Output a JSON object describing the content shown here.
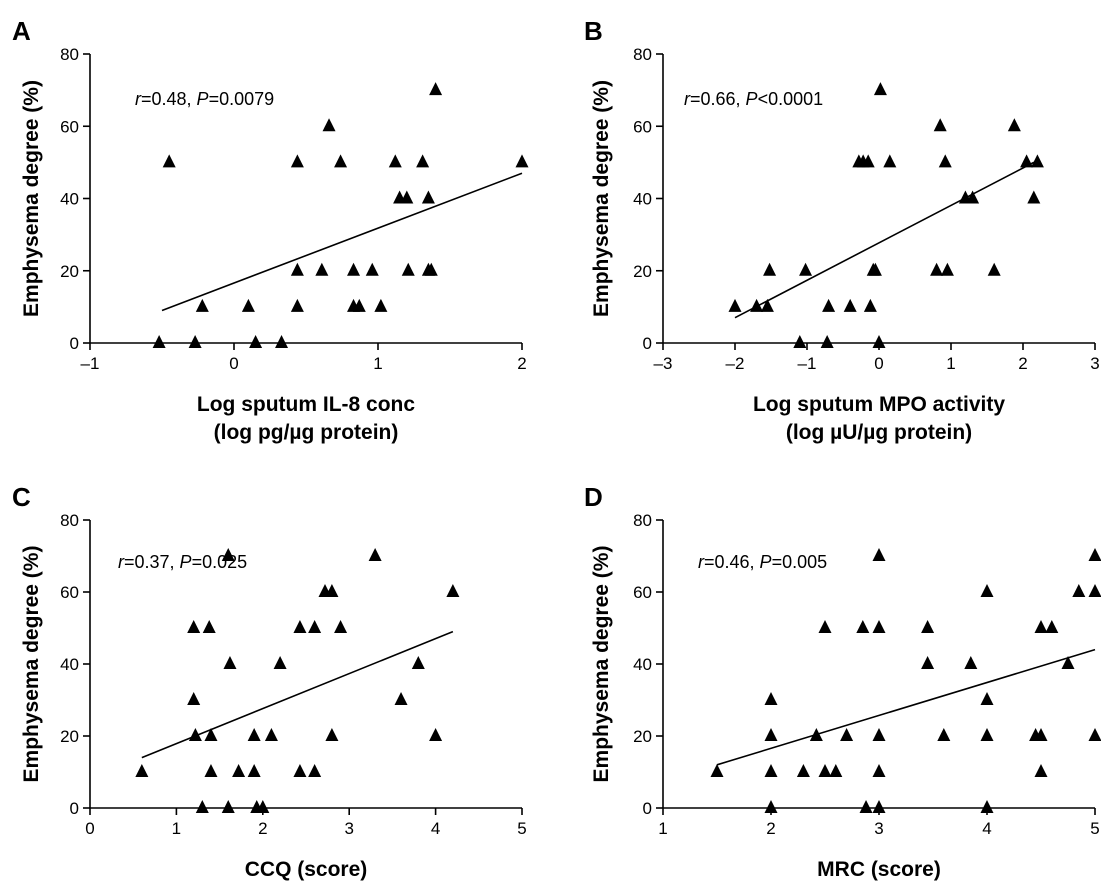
{
  "chart_data": [
    {
      "type": "scatter",
      "panel": "A",
      "annotation": {
        "r_symbol": "r",
        "r_text": "=0.48, ",
        "p_symbol": "P",
        "p_text": "=0.0079"
      },
      "xlabel": [
        "Log sputum IL-8 conc",
        "(log pg/µg protein)"
      ],
      "ylabel": "Emphysema degree (%)",
      "xlim": [
        -1,
        2
      ],
      "ylim": [
        0,
        80
      ],
      "xticks": [
        -1,
        0,
        1,
        2
      ],
      "xtick_labels": [
        "–1",
        "0",
        "1",
        "2"
      ],
      "yticks": [
        0,
        20,
        40,
        60,
        80
      ],
      "ytick_labels": [
        "0",
        "20",
        "40",
        "60",
        "80"
      ],
      "points": [
        [
          -0.45,
          50
        ],
        [
          -0.52,
          0
        ],
        [
          -0.27,
          0
        ],
        [
          -0.22,
          10
        ],
        [
          0.1,
          10
        ],
        [
          0.15,
          0
        ],
        [
          0.33,
          0
        ],
        [
          0.44,
          50
        ],
        [
          0.44,
          20
        ],
        [
          0.44,
          10
        ],
        [
          0.61,
          20
        ],
        [
          0.66,
          60
        ],
        [
          0.74,
          50
        ],
        [
          0.83,
          20
        ],
        [
          0.83,
          10
        ],
        [
          0.87,
          10
        ],
        [
          0.96,
          20
        ],
        [
          1.02,
          10
        ],
        [
          1.12,
          50
        ],
        [
          1.15,
          40
        ],
        [
          1.2,
          40
        ],
        [
          1.21,
          20
        ],
        [
          1.31,
          50
        ],
        [
          1.35,
          40
        ],
        [
          1.35,
          20
        ],
        [
          1.37,
          20
        ],
        [
          1.4,
          70
        ],
        [
          2.0,
          50
        ]
      ],
      "regression": [
        [
          -0.5,
          9
        ],
        [
          2.0,
          47
        ]
      ]
    },
    {
      "type": "scatter",
      "panel": "B",
      "annotation": {
        "r_symbol": "r",
        "r_text": "=0.66, ",
        "p_symbol": "P",
        "p_text": "<0.0001"
      },
      "xlabel": [
        "Log sputum MPO activity",
        "(log µU/µg protein)"
      ],
      "ylabel": "Emphysema degree (%)",
      "xlim": [
        -3,
        3
      ],
      "ylim": [
        0,
        80
      ],
      "xticks": [
        -3,
        -2,
        -1,
        0,
        1,
        2,
        3
      ],
      "xtick_labels": [
        "–3",
        "–2",
        "–1",
        "0",
        "1",
        "2",
        "3"
      ],
      "yticks": [
        0,
        20,
        40,
        60,
        80
      ],
      "ytick_labels": [
        "0",
        "20",
        "40",
        "60",
        "80"
      ],
      "points": [
        [
          -2.0,
          10
        ],
        [
          -1.7,
          10
        ],
        [
          -1.55,
          10
        ],
        [
          -1.52,
          20
        ],
        [
          -1.1,
          0
        ],
        [
          -1.02,
          20
        ],
        [
          -0.72,
          0
        ],
        [
          -0.7,
          10
        ],
        [
          -0.4,
          10
        ],
        [
          -0.28,
          50
        ],
        [
          -0.22,
          50
        ],
        [
          -0.15,
          50
        ],
        [
          -0.12,
          10
        ],
        [
          -0.08,
          20
        ],
        [
          -0.05,
          20
        ],
        [
          0.0,
          0
        ],
        [
          0.02,
          70
        ],
        [
          0.15,
          50
        ],
        [
          0.8,
          20
        ],
        [
          0.85,
          60
        ],
        [
          0.92,
          50
        ],
        [
          0.95,
          20
        ],
        [
          1.2,
          40
        ],
        [
          1.3,
          40
        ],
        [
          1.6,
          20
        ],
        [
          1.88,
          60
        ],
        [
          2.05,
          50
        ],
        [
          2.2,
          50
        ],
        [
          2.15,
          40
        ]
      ],
      "regression": [
        [
          -2.0,
          7
        ],
        [
          2.15,
          50
        ]
      ]
    },
    {
      "type": "scatter",
      "panel": "C",
      "annotation": {
        "r_symbol": "r",
        "r_text": "=0.37, ",
        "p_symbol": "P",
        "p_text": "=0.025"
      },
      "xlabel": [
        "CCQ (score)"
      ],
      "ylabel": "Emphysema degree (%)",
      "xlim": [
        0,
        5
      ],
      "ylim": [
        0,
        80
      ],
      "xticks": [
        0,
        1,
        2,
        3,
        4,
        5
      ],
      "xtick_labels": [
        "0",
        "1",
        "2",
        "3",
        "4",
        "5"
      ],
      "yticks": [
        0,
        20,
        40,
        60,
        80
      ],
      "ytick_labels": [
        "0",
        "20",
        "40",
        "60",
        "80"
      ],
      "points": [
        [
          0.6,
          10
        ],
        [
          1.2,
          50
        ],
        [
          1.2,
          30
        ],
        [
          1.22,
          20
        ],
        [
          1.3,
          0
        ],
        [
          1.38,
          50
        ],
        [
          1.4,
          20
        ],
        [
          1.4,
          10
        ],
        [
          1.6,
          70
        ],
        [
          1.62,
          40
        ],
        [
          1.6,
          0
        ],
        [
          1.72,
          10
        ],
        [
          1.9,
          20
        ],
        [
          1.9,
          10
        ],
        [
          1.93,
          0
        ],
        [
          2.0,
          0
        ],
        [
          2.1,
          20
        ],
        [
          2.2,
          40
        ],
        [
          2.43,
          50
        ],
        [
          2.43,
          10
        ],
        [
          2.6,
          50
        ],
        [
          2.6,
          10
        ],
        [
          2.72,
          60
        ],
        [
          2.8,
          60
        ],
        [
          2.8,
          20
        ],
        [
          2.9,
          50
        ],
        [
          3.3,
          70
        ],
        [
          3.6,
          30
        ],
        [
          3.8,
          40
        ],
        [
          4.0,
          20
        ],
        [
          4.2,
          60
        ]
      ],
      "regression": [
        [
          0.6,
          14
        ],
        [
          4.2,
          49
        ]
      ]
    },
    {
      "type": "scatter",
      "panel": "D",
      "annotation": {
        "r_symbol": "r",
        "r_text": "=0.46, ",
        "p_symbol": "P",
        "p_text": "=0.005"
      },
      "xlabel": [
        "MRC (score)"
      ],
      "ylabel": "Emphysema degree (%)",
      "xlim": [
        1,
        5
      ],
      "ylim": [
        0,
        80
      ],
      "xticks": [
        1,
        2,
        3,
        4,
        5
      ],
      "xtick_labels": [
        "1",
        "2",
        "3",
        "4",
        "5"
      ],
      "yticks": [
        0,
        20,
        40,
        60,
        80
      ],
      "ytick_labels": [
        "0",
        "20",
        "40",
        "60",
        "80"
      ],
      "points": [
        [
          1.5,
          10
        ],
        [
          2.0,
          30
        ],
        [
          2.0,
          20
        ],
        [
          2.0,
          10
        ],
        [
          2.0,
          0
        ],
        [
          2.3,
          10
        ],
        [
          2.42,
          20
        ],
        [
          2.5,
          50
        ],
        [
          2.5,
          10
        ],
        [
          2.6,
          10
        ],
        [
          2.7,
          20
        ],
        [
          2.85,
          50
        ],
        [
          2.88,
          0
        ],
        [
          3.0,
          70
        ],
        [
          3.0,
          50
        ],
        [
          3.0,
          20
        ],
        [
          3.0,
          10
        ],
        [
          3.0,
          0
        ],
        [
          3.45,
          50
        ],
        [
          3.45,
          40
        ],
        [
          3.6,
          20
        ],
        [
          3.85,
          40
        ],
        [
          4.0,
          60
        ],
        [
          4.0,
          30
        ],
        [
          4.0,
          20
        ],
        [
          4.0,
          0
        ],
        [
          4.45,
          20
        ],
        [
          4.5,
          50
        ],
        [
          4.5,
          20
        ],
        [
          4.5,
          10
        ],
        [
          4.6,
          50
        ],
        [
          4.75,
          40
        ],
        [
          4.85,
          60
        ],
        [
          5.0,
          70
        ],
        [
          5.0,
          60
        ],
        [
          5.0,
          20
        ]
      ],
      "regression": [
        [
          1.5,
          12
        ],
        [
          5.0,
          44
        ]
      ]
    }
  ]
}
